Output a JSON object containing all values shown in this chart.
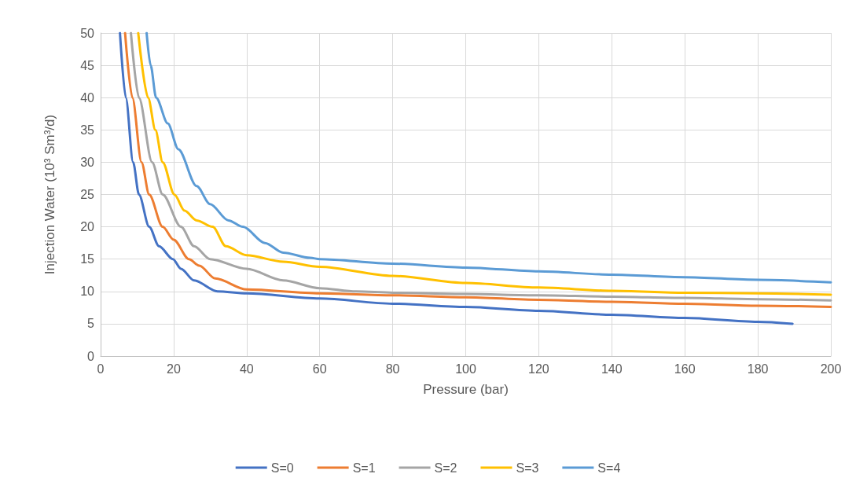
{
  "chart_data": {
    "type": "line",
    "xlabel": "Pressure (bar)",
    "ylabel": "Injection Water (10³ Sm³/d)",
    "xlim": [
      0,
      200
    ],
    "xticks": [
      0,
      20,
      40,
      60,
      80,
      100,
      120,
      140,
      160,
      180,
      200
    ],
    "ylim": [
      0,
      50
    ],
    "yticks": [
      0,
      5,
      10,
      15,
      20,
      25,
      30,
      35,
      40,
      45,
      50
    ],
    "grid": true,
    "legend": "bottom",
    "marker": "none",
    "line_style": "solid",
    "series": [
      {
        "name": "S=0",
        "color": "#4472c4",
        "x": [
          5.3,
          6.9,
          8.9,
          10.5,
          13.3,
          16,
          19.8,
          22,
          25.6,
          32,
          40,
          60,
          80,
          100,
          120,
          140,
          160,
          180,
          189.5
        ],
        "values": [
          50,
          40,
          30,
          25,
          20,
          17,
          15,
          13.5,
          11.7,
          10,
          9.7,
          8.9,
          8.1,
          7.6,
          7.0,
          6.4,
          5.9,
          5.3,
          5.0
        ]
      },
      {
        "name": "S=1",
        "color": "#ed7d31",
        "x": [
          6.7,
          8.7,
          11.2,
          13.3,
          17,
          20,
          24.2,
          27,
          31.4,
          40,
          60,
          80,
          100,
          120,
          140,
          160,
          180,
          200
        ],
        "values": [
          50,
          40,
          30,
          25,
          20,
          18,
          15,
          14,
          12,
          10.3,
          9.7,
          9.4,
          9.1,
          8.7,
          8.4,
          8.1,
          7.8,
          7.6
        ]
      },
      {
        "name": "S=2",
        "color": "#a5a5a5",
        "x": [
          8.3,
          10.5,
          14.1,
          17,
          22,
          25.6,
          30,
          40,
          50,
          60,
          70,
          80,
          100,
          120,
          140,
          160,
          180,
          200
        ],
        "values": [
          50,
          40,
          30,
          25,
          20,
          17,
          15,
          13.5,
          11.7,
          10.5,
          10,
          9.8,
          9.6,
          9.4,
          9.2,
          9.0,
          8.8,
          8.6
        ]
      },
      {
        "name": "S=3",
        "color": "#ffc000",
        "x": [
          10.3,
          13,
          15,
          17,
          20.2,
          23,
          26.3,
          30.7,
          34.3,
          40,
          50,
          60,
          80,
          100,
          120,
          140,
          160,
          180,
          200
        ],
        "values": [
          50,
          40,
          35,
          30,
          25,
          22.5,
          21,
          20,
          17,
          15.6,
          14.6,
          13.8,
          12.4,
          11.3,
          10.6,
          10.1,
          9.8,
          9.7,
          9.5
        ]
      },
      {
        "name": "S=4",
        "color": "#5b9bd5",
        "x": [
          12.6,
          13.7,
          15.2,
          18.4,
          21.3,
          26.3,
          30,
          35,
          39,
          45,
          50,
          57.4,
          60,
          80,
          100,
          120,
          140,
          160,
          180,
          200
        ],
        "values": [
          50,
          45,
          40,
          36,
          32,
          26.3,
          23.5,
          21,
          20,
          17.5,
          16,
          15.2,
          15,
          14.3,
          13.7,
          13.1,
          12.6,
          12.2,
          11.8,
          11.4
        ]
      }
    ]
  }
}
